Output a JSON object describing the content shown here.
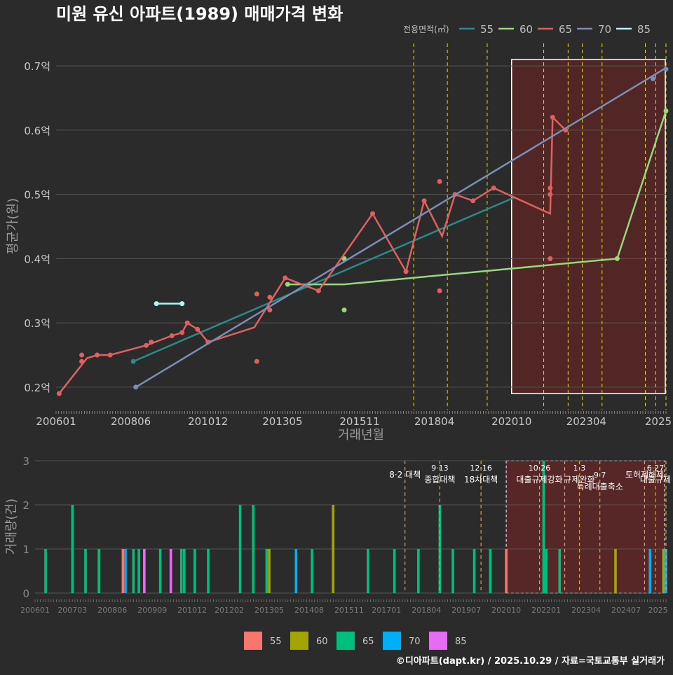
{
  "title": "미원 유신 아파트(1989) 매매가격 변화",
  "legend_title": "전용면적(㎡)",
  "caption": "©디아파트(dapt.kr) / 2025.10.29 / 자료=국토교통부 실거래가",
  "colors": {
    "background": "#2b2b2b",
    "grid": "#555555",
    "title": "#ffffff",
    "axis_text": "#c8c8c8",
    "policy_line": "#e6d22e",
    "highlight": "#5a2626"
  },
  "chart_data": [
    {
      "type": "line",
      "title": "미원 유신 아파트(1989) 매매가격 변화",
      "xlabel": "거래년월",
      "ylabel": "평균가(원)",
      "xlim": [
        2006.0,
        2025.75
      ],
      "ylim": [
        0.165,
        0.735
      ],
      "y_ticks": [
        0.2,
        0.3,
        0.4,
        0.5,
        0.6,
        0.7
      ],
      "y_tick_labels": [
        "0.2억",
        "0.3억",
        "0.4억",
        "0.5억",
        "0.6억",
        "0.7억"
      ],
      "x_ticks": [
        2006.0,
        2008.42,
        2010.92,
        2013.33,
        2015.83,
        2018.25,
        2020.75,
        2023.17,
        2025.5
      ],
      "x_tick_labels": [
        "200601",
        "200806",
        "201012",
        "201305",
        "201511",
        "201804",
        "202010",
        "202304",
        "2025"
      ],
      "legend_position": "top-right",
      "highlight_range": [
        2020.75,
        2025.75
      ],
      "highlight_ylim": [
        0.19,
        0.71
      ],
      "policy_lines": [
        2017.58,
        2018.67,
        2019.96,
        2021.79,
        2022.58,
        2023.04,
        2023.68,
        2025.08,
        2025.42,
        2025.75
      ],
      "series": [
        {
          "name": "55",
          "color": "#2a8a8a",
          "line": [
            [
              2008.5,
              0.24
            ],
            [
              2020.83,
              0.495
            ]
          ],
          "points": [
            [
              2008.5,
              0.24
            ]
          ]
        },
        {
          "name": "60",
          "color": "#97d87a",
          "line": [
            [
              2013.5,
              0.36
            ],
            [
              2015.33,
              0.36
            ],
            [
              2024.17,
              0.4
            ],
            [
              2025.75,
              0.63
            ]
          ],
          "points": [
            [
              2013.5,
              0.36
            ],
            [
              2015.33,
              0.4
            ],
            [
              2015.33,
              0.32
            ],
            [
              2024.17,
              0.4
            ],
            [
              2025.75,
              0.63
            ]
          ]
        },
        {
          "name": "65",
          "color": "#e06060",
          "line": [
            [
              2006.1,
              0.19
            ],
            [
              2007.0,
              0.245
            ],
            [
              2007.33,
              0.25
            ],
            [
              2007.75,
              0.25
            ],
            [
              2008.92,
              0.265
            ],
            [
              2009.75,
              0.28
            ],
            [
              2010.08,
              0.285
            ],
            [
              2010.25,
              0.3
            ],
            [
              2010.58,
              0.29
            ],
            [
              2010.92,
              0.27
            ],
            [
              2012.42,
              0.293
            ],
            [
              2013.42,
              0.37
            ],
            [
              2014.5,
              0.35
            ],
            [
              2016.25,
              0.47
            ],
            [
              2017.33,
              0.38
            ],
            [
              2017.92,
              0.49
            ],
            [
              2018.5,
              0.435
            ],
            [
              2018.92,
              0.5
            ],
            [
              2019.5,
              0.49
            ],
            [
              2020.17,
              0.51
            ],
            [
              2022.0,
              0.47
            ],
            [
              2022.08,
              0.62
            ],
            [
              2022.5,
              0.6
            ]
          ],
          "points": [
            [
              2006.1,
              0.19
            ],
            [
              2006.83,
              0.25
            ],
            [
              2006.83,
              0.24
            ],
            [
              2007.33,
              0.25
            ],
            [
              2007.75,
              0.25
            ],
            [
              2008.92,
              0.265
            ],
            [
              2009.08,
              0.27
            ],
            [
              2009.75,
              0.28
            ],
            [
              2010.08,
              0.285
            ],
            [
              2010.25,
              0.3
            ],
            [
              2010.58,
              0.29
            ],
            [
              2010.92,
              0.27
            ],
            [
              2012.5,
              0.345
            ],
            [
              2012.5,
              0.24
            ],
            [
              2012.92,
              0.34
            ],
            [
              2012.92,
              0.32
            ],
            [
              2013.42,
              0.37
            ],
            [
              2014.5,
              0.35
            ],
            [
              2016.25,
              0.47
            ],
            [
              2017.33,
              0.38
            ],
            [
              2017.92,
              0.49
            ],
            [
              2018.42,
              0.52
            ],
            [
              2018.42,
              0.35
            ],
            [
              2018.92,
              0.5
            ],
            [
              2019.5,
              0.49
            ],
            [
              2020.17,
              0.51
            ],
            [
              2022.0,
              0.51
            ],
            [
              2022.0,
              0.5
            ],
            [
              2022.0,
              0.4
            ],
            [
              2022.08,
              0.62
            ],
            [
              2022.5,
              0.6
            ]
          ]
        },
        {
          "name": "70",
          "color": "#7b8eb5",
          "line": [
            [
              2008.58,
              0.2
            ],
            [
              2025.75,
              0.697
            ]
          ],
          "points": [
            [
              2008.58,
              0.2
            ],
            [
              2025.33,
              0.68
            ],
            [
              2025.75,
              0.695
            ]
          ]
        },
        {
          "name": "85",
          "color": "#b8f2f2",
          "line": [
            [
              2009.25,
              0.33
            ],
            [
              2010.08,
              0.33
            ]
          ],
          "points": [
            [
              2009.25,
              0.33
            ],
            [
              2010.08,
              0.33
            ]
          ]
        }
      ]
    },
    {
      "type": "bar",
      "ylabel": "거래량(건)",
      "xlim": [
        2006.0,
        2025.75
      ],
      "ylim": [
        0,
        3
      ],
      "y_ticks": [
        0,
        1,
        2,
        3
      ],
      "x_ticks": [
        2006.0,
        2007.17,
        2008.42,
        2009.67,
        2010.92,
        2012.08,
        2013.33,
        2014.58,
        2015.83,
        2017.0,
        2018.25,
        2019.5,
        2020.75,
        2022.0,
        2023.25,
        2024.5,
        2025.5
      ],
      "x_tick_labels": [
        "200601",
        "200703",
        "200806",
        "200909",
        "201012",
        "201202",
        "201305",
        "201408",
        "201511",
        "201701",
        "201804",
        "201907",
        "202010",
        "202201",
        "202304",
        "202407",
        "2025"
      ],
      "highlight_range": [
        2020.75,
        2025.75
      ],
      "policies": [
        {
          "x": 2017.58,
          "date": "",
          "label": "8·2 대책",
          "row": 2
        },
        {
          "x": 2018.67,
          "date": "9·13",
          "label": "종합대책",
          "row": 1
        },
        {
          "x": 2019.96,
          "date": "12·16",
          "label": "18차대책",
          "row": 1
        },
        {
          "x": 2021.79,
          "date": "10·26",
          "label": "대출규제강화",
          "row": 1
        },
        {
          "x": 2022.58,
          "date": "",
          "label": "",
          "row": 1
        },
        {
          "x": 2023.04,
          "date": "1·3",
          "label": "규제완화",
          "row": 1
        },
        {
          "x": 2023.68,
          "date": "9·7",
          "label": "특례대출축소",
          "row": 2
        },
        {
          "x": 2025.08,
          "date": "",
          "label": "토허제해제",
          "row": 2
        },
        {
          "x": 2025.42,
          "date": "6·27",
          "label": "대출규제",
          "row": 1
        },
        {
          "x": 2025.75,
          "date": "",
          "label": "",
          "row": 1
        }
      ],
      "bars": [
        {
          "x": 2006.33,
          "value": 1,
          "series": "65"
        },
        {
          "x": 2007.17,
          "value": 2,
          "series": "65"
        },
        {
          "x": 2007.58,
          "value": 1,
          "series": "65"
        },
        {
          "x": 2008.0,
          "value": 1,
          "series": "65"
        },
        {
          "x": 2008.75,
          "value": 1,
          "series": "55"
        },
        {
          "x": 2008.83,
          "value": 1,
          "series": "70"
        },
        {
          "x": 2009.08,
          "value": 1,
          "series": "65"
        },
        {
          "x": 2009.25,
          "value": 1,
          "series": "65"
        },
        {
          "x": 2009.42,
          "value": 1,
          "series": "85"
        },
        {
          "x": 2009.92,
          "value": 1,
          "series": "65"
        },
        {
          "x": 2010.25,
          "value": 1,
          "series": "85"
        },
        {
          "x": 2010.58,
          "value": 1,
          "series": "65"
        },
        {
          "x": 2010.67,
          "value": 1,
          "series": "65"
        },
        {
          "x": 2011.0,
          "value": 1,
          "series": "65"
        },
        {
          "x": 2011.42,
          "value": 1,
          "series": "65"
        },
        {
          "x": 2012.42,
          "value": 2,
          "series": "65"
        },
        {
          "x": 2012.83,
          "value": 2,
          "series": "65"
        },
        {
          "x": 2013.25,
          "value": 1,
          "series": "65"
        },
        {
          "x": 2013.33,
          "value": 1,
          "series": "60"
        },
        {
          "x": 2014.17,
          "value": 1,
          "series": "70"
        },
        {
          "x": 2014.67,
          "value": 1,
          "series": "65"
        },
        {
          "x": 2015.33,
          "value": 2,
          "series": "60"
        },
        {
          "x": 2016.42,
          "value": 1,
          "series": "65"
        },
        {
          "x": 2017.25,
          "value": 1,
          "series": "65"
        },
        {
          "x": 2018.0,
          "value": 1,
          "series": "65"
        },
        {
          "x": 2018.67,
          "value": 2,
          "series": "65"
        },
        {
          "x": 2019.08,
          "value": 1,
          "series": "65"
        },
        {
          "x": 2019.75,
          "value": 1,
          "series": "65"
        },
        {
          "x": 2020.25,
          "value": 1,
          "series": "65"
        },
        {
          "x": 2020.75,
          "value": 1,
          "series": "55"
        },
        {
          "x": 2021.92,
          "value": 3,
          "series": "65"
        },
        {
          "x": 2022.0,
          "value": 1,
          "series": "65"
        },
        {
          "x": 2022.42,
          "value": 1,
          "series": "65"
        },
        {
          "x": 2024.17,
          "value": 1,
          "series": "60"
        },
        {
          "x": 2025.25,
          "value": 1,
          "series": "70"
        },
        {
          "x": 2025.67,
          "value": 1,
          "series": "60"
        },
        {
          "x": 2025.75,
          "value": 1,
          "series": "70"
        }
      ],
      "legend": [
        {
          "name": "55",
          "color": "#f8766d"
        },
        {
          "name": "60",
          "color": "#a3a500"
        },
        {
          "name": "65",
          "color": "#00bf7d"
        },
        {
          "name": "70",
          "color": "#00b0f6"
        },
        {
          "name": "85",
          "color": "#e76bf3"
        }
      ]
    }
  ]
}
